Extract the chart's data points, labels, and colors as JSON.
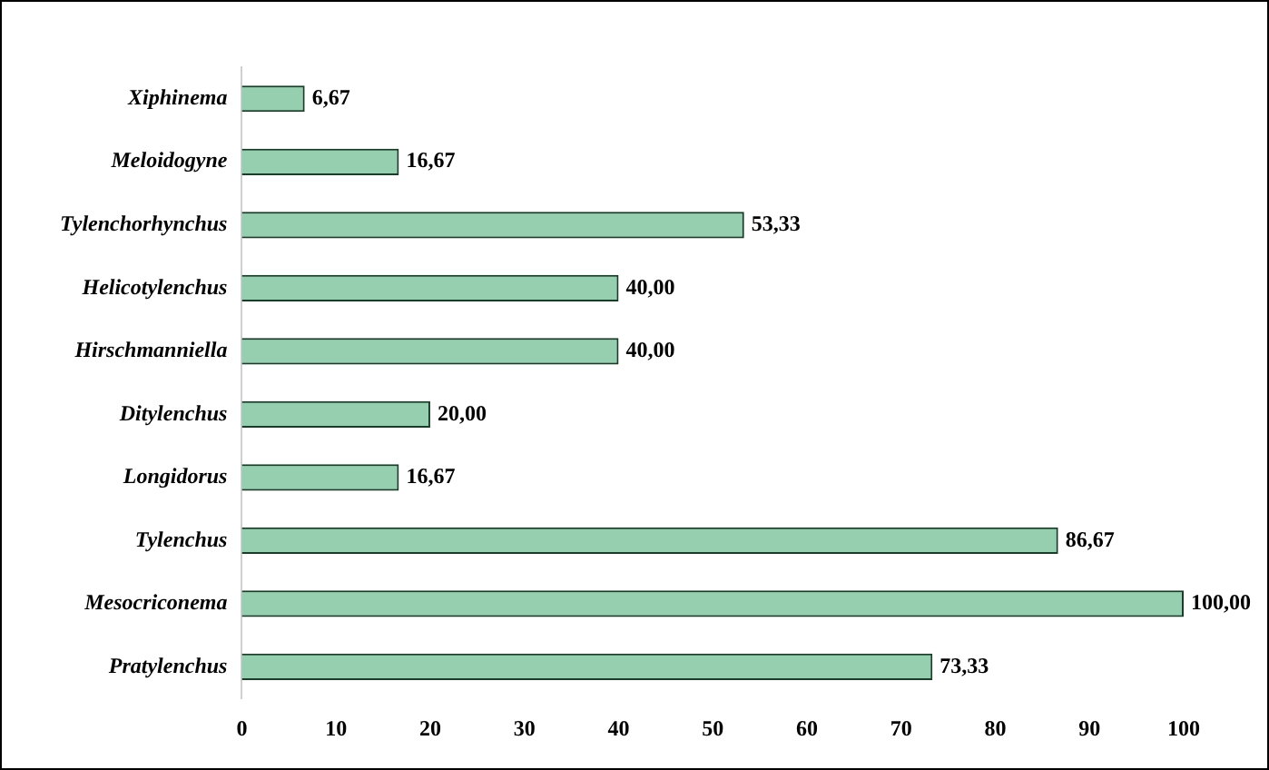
{
  "chart_data": {
    "type": "bar",
    "orientation": "horizontal",
    "categories": [
      "Xiphinema",
      "Meloidogyne",
      "Tylenchorhynchus",
      "Helicotylenchus",
      "Hirschmanniella",
      "Ditylenchus",
      "Longidorus",
      "Tylenchus",
      "Mesocriconema",
      "Pratylenchus"
    ],
    "values": [
      6.67,
      16.67,
      53.33,
      40.0,
      40.0,
      20.0,
      16.67,
      86.67,
      100.0,
      73.33
    ],
    "value_labels": [
      "6,67",
      "16,67",
      "53,33",
      "40,00",
      "40,00",
      "20,00",
      "16,67",
      "86,67",
      "100,00",
      "73,33"
    ],
    "color": "#2e9e62",
    "xlim": [
      0,
      100
    ],
    "xticks": [
      0,
      10,
      20,
      30,
      40,
      50,
      60,
      70,
      80,
      90,
      100
    ],
    "grid": false,
    "legend": false
  }
}
